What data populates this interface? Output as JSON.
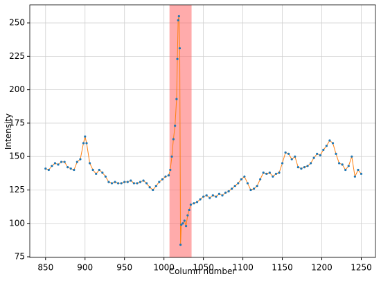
{
  "chart_data": {
    "type": "line",
    "xlabel": "Column number",
    "ylabel": "Intensity",
    "x": [
      850,
      854,
      858,
      862,
      866,
      870,
      874,
      878,
      882,
      886,
      890,
      894,
      898,
      900,
      902,
      906,
      910,
      914,
      918,
      922,
      926,
      930,
      934,
      938,
      942,
      946,
      950,
      954,
      958,
      962,
      966,
      970,
      974,
      978,
      982,
      986,
      990,
      994,
      998,
      1002,
      1006,
      1008,
      1010,
      1012,
      1014,
      1016,
      1017,
      1018,
      1019,
      1020,
      1021,
      1022,
      1024,
      1026,
      1028,
      1030,
      1032,
      1034,
      1038,
      1042,
      1046,
      1050,
      1054,
      1058,
      1062,
      1066,
      1070,
      1074,
      1078,
      1082,
      1086,
      1090,
      1094,
      1098,
      1102,
      1106,
      1110,
      1114,
      1118,
      1122,
      1126,
      1130,
      1134,
      1138,
      1142,
      1146,
      1150,
      1154,
      1158,
      1162,
      1166,
      1170,
      1174,
      1178,
      1182,
      1186,
      1190,
      1194,
      1198,
      1202,
      1206,
      1210,
      1214,
      1218,
      1222,
      1226,
      1230,
      1234,
      1238,
      1242,
      1246,
      1250
    ],
    "series": [
      {
        "name": "Intensity",
        "color": "#ff7f0e",
        "marker_color": "#1f77b4",
        "values": [
          141,
          140,
          143,
          145,
          144,
          146,
          146,
          142,
          141,
          140,
          146,
          148,
          160,
          165,
          160,
          145,
          140,
          137,
          140,
          138,
          135,
          131,
          130,
          131,
          130,
          130,
          131,
          131,
          132,
          130,
          130,
          131,
          132,
          130,
          127,
          125,
          128,
          131,
          133,
          135,
          136,
          140,
          150,
          163,
          173,
          193,
          223,
          252,
          255,
          231,
          84,
          99,
          100,
          102,
          98,
          106,
          110,
          114,
          115,
          116,
          118,
          120,
          121,
          119,
          121,
          120,
          122,
          121,
          123,
          124,
          126,
          128,
          130,
          133,
          135,
          130,
          125,
          126,
          128,
          133,
          138,
          137,
          138,
          135,
          137,
          138,
          145,
          153,
          152,
          148,
          150,
          142,
          141,
          142,
          143,
          145,
          149,
          152,
          151,
          155,
          158,
          162,
          160,
          152,
          145,
          144,
          140,
          143,
          150,
          135,
          140,
          137
        ]
      }
    ],
    "highlight_x": [
      1007,
      1035
    ],
    "highlight_color": "#ff6666",
    "xlim": [
      830,
      1268
    ],
    "ylim": [
      74.5,
      263.5
    ],
    "xticks": [
      850,
      900,
      950,
      1000,
      1050,
      1100,
      1150,
      1200,
      1250
    ],
    "yticks": [
      75,
      100,
      125,
      150,
      175,
      200,
      225,
      250
    ],
    "grid": true
  }
}
